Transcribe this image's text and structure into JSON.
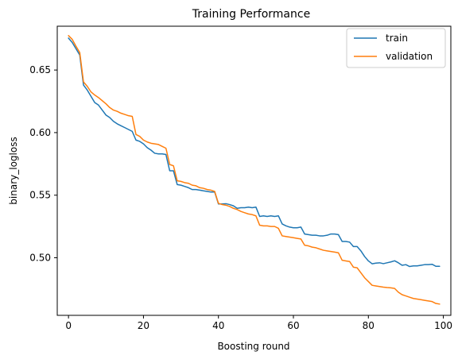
{
  "chart_data": {
    "type": "line",
    "title": "Training Performance",
    "xlabel": "Boosting round",
    "ylabel": "binary_logloss",
    "xlim": [
      -3,
      102
    ],
    "ylim": [
      0.454,
      0.685
    ],
    "xticks": [
      0,
      20,
      40,
      60,
      80,
      100
    ],
    "yticks": [
      0.5,
      0.55,
      0.6,
      0.65
    ],
    "ytick_labels": [
      "0.50",
      "0.55",
      "0.60",
      "0.65"
    ],
    "grid": false,
    "legend_position": "top-right",
    "series": [
      {
        "name": "train",
        "color": "#1f77b4",
        "points": [
          [
            0,
            0.6755
          ],
          [
            1,
            0.672
          ],
          [
            2,
            0.667
          ],
          [
            3,
            0.662
          ],
          [
            4,
            0.638
          ],
          [
            5,
            0.634
          ],
          [
            6,
            0.629
          ],
          [
            7,
            0.624
          ],
          [
            8,
            0.622
          ],
          [
            9,
            0.618
          ],
          [
            10,
            0.614
          ],
          [
            11,
            0.612
          ],
          [
            12,
            0.609
          ],
          [
            13,
            0.607
          ],
          [
            14,
            0.6055
          ],
          [
            15,
            0.604
          ],
          [
            16,
            0.6025
          ],
          [
            17,
            0.601
          ],
          [
            18,
            0.594
          ],
          [
            19,
            0.593
          ],
          [
            20,
            0.591
          ],
          [
            21,
            0.588
          ],
          [
            22,
            0.586
          ],
          [
            23,
            0.5835
          ],
          [
            24,
            0.583
          ],
          [
            25,
            0.583
          ],
          [
            26,
            0.5825
          ],
          [
            27,
            0.5695
          ],
          [
            28,
            0.5695
          ],
          [
            29,
            0.5585
          ],
          [
            30,
            0.558
          ],
          [
            31,
            0.557
          ],
          [
            32,
            0.556
          ],
          [
            33,
            0.5545
          ],
          [
            34,
            0.5545
          ],
          [
            35,
            0.554
          ],
          [
            36,
            0.5535
          ],
          [
            37,
            0.553
          ],
          [
            38,
            0.5525
          ],
          [
            39,
            0.5525
          ],
          [
            40,
            0.543
          ],
          [
            41,
            0.543
          ],
          [
            42,
            0.5432
          ],
          [
            43,
            0.5425
          ],
          [
            44,
            0.5415
          ],
          [
            45,
            0.5395
          ],
          [
            46,
            0.54
          ],
          [
            47,
            0.54
          ],
          [
            48,
            0.5405
          ],
          [
            49,
            0.54
          ],
          [
            50,
            0.5405
          ],
          [
            51,
            0.533
          ],
          [
            52,
            0.5335
          ],
          [
            53,
            0.533
          ],
          [
            54,
            0.5335
          ],
          [
            55,
            0.533
          ],
          [
            56,
            0.5335
          ],
          [
            57,
            0.527
          ],
          [
            58,
            0.5255
          ],
          [
            59,
            0.5245
          ],
          [
            60,
            0.524
          ],
          [
            61,
            0.524
          ],
          [
            62,
            0.5245
          ],
          [
            63,
            0.519
          ],
          [
            64,
            0.5185
          ],
          [
            65,
            0.518
          ],
          [
            66,
            0.518
          ],
          [
            67,
            0.5175
          ],
          [
            68,
            0.5175
          ],
          [
            69,
            0.518
          ],
          [
            70,
            0.519
          ],
          [
            71,
            0.519
          ],
          [
            72,
            0.5185
          ],
          [
            73,
            0.513
          ],
          [
            74,
            0.513
          ],
          [
            75,
            0.5125
          ],
          [
            76,
            0.509
          ],
          [
            77,
            0.509
          ],
          [
            78,
            0.5055
          ],
          [
            79,
            0.501
          ],
          [
            80,
            0.4975
          ],
          [
            81,
            0.4952
          ],
          [
            82,
            0.4957
          ],
          [
            83,
            0.496
          ],
          [
            84,
            0.4953
          ],
          [
            85,
            0.496
          ],
          [
            86,
            0.4967
          ],
          [
            87,
            0.4976
          ],
          [
            88,
            0.496
          ],
          [
            89,
            0.494
          ],
          [
            90,
            0.4945
          ],
          [
            91,
            0.493
          ],
          [
            92,
            0.4935
          ],
          [
            93,
            0.4935
          ],
          [
            94,
            0.494
          ],
          [
            95,
            0.4945
          ],
          [
            96,
            0.4945
          ],
          [
            97,
            0.4948
          ],
          [
            98,
            0.4932
          ],
          [
            99,
            0.4932
          ]
        ]
      },
      {
        "name": "validation",
        "color": "#ff7f0e",
        "points": [
          [
            0,
            0.6775
          ],
          [
            1,
            0.6745
          ],
          [
            2,
            0.669
          ],
          [
            3,
            0.664
          ],
          [
            4,
            0.6405
          ],
          [
            5,
            0.637
          ],
          [
            6,
            0.6325
          ],
          [
            7,
            0.63
          ],
          [
            8,
            0.628
          ],
          [
            9,
            0.6255
          ],
          [
            10,
            0.623
          ],
          [
            11,
            0.62
          ],
          [
            12,
            0.618
          ],
          [
            13,
            0.617
          ],
          [
            14,
            0.6155
          ],
          [
            15,
            0.6145
          ],
          [
            16,
            0.6135
          ],
          [
            17,
            0.613
          ],
          [
            18,
            0.5985
          ],
          [
            19,
            0.597
          ],
          [
            20,
            0.594
          ],
          [
            21,
            0.5925
          ],
          [
            22,
            0.5915
          ],
          [
            23,
            0.591
          ],
          [
            24,
            0.5905
          ],
          [
            25,
            0.589
          ],
          [
            26,
            0.5875
          ],
          [
            27,
            0.5745
          ],
          [
            28,
            0.5735
          ],
          [
            29,
            0.5615
          ],
          [
            30,
            0.561
          ],
          [
            31,
            0.56
          ],
          [
            32,
            0.5595
          ],
          [
            33,
            0.558
          ],
          [
            34,
            0.5575
          ],
          [
            35,
            0.556
          ],
          [
            36,
            0.5555
          ],
          [
            37,
            0.5545
          ],
          [
            38,
            0.554
          ],
          [
            39,
            0.553
          ],
          [
            40,
            0.5435
          ],
          [
            41,
            0.5425
          ],
          [
            42,
            0.542
          ],
          [
            43,
            0.541
          ],
          [
            44,
            0.5395
          ],
          [
            45,
            0.5385
          ],
          [
            46,
            0.537
          ],
          [
            47,
            0.536
          ],
          [
            48,
            0.535
          ],
          [
            49,
            0.5345
          ],
          [
            50,
            0.5335
          ],
          [
            51,
            0.526
          ],
          [
            52,
            0.5255
          ],
          [
            53,
            0.5255
          ],
          [
            54,
            0.525
          ],
          [
            55,
            0.525
          ],
          [
            56,
            0.5235
          ],
          [
            57,
            0.5175
          ],
          [
            58,
            0.517
          ],
          [
            59,
            0.5165
          ],
          [
            60,
            0.516
          ],
          [
            61,
            0.5155
          ],
          [
            62,
            0.515
          ],
          [
            63,
            0.51
          ],
          [
            64,
            0.5095
          ],
          [
            65,
            0.5085
          ],
          [
            66,
            0.508
          ],
          [
            67,
            0.507
          ],
          [
            68,
            0.506
          ],
          [
            69,
            0.5055
          ],
          [
            70,
            0.505
          ],
          [
            71,
            0.5045
          ],
          [
            72,
            0.504
          ],
          [
            73,
            0.498
          ],
          [
            74,
            0.4975
          ],
          [
            75,
            0.497
          ],
          [
            76,
            0.4925
          ],
          [
            77,
            0.492
          ],
          [
            78,
            0.488
          ],
          [
            79,
            0.484
          ],
          [
            80,
            0.481
          ],
          [
            81,
            0.478
          ],
          [
            82,
            0.4775
          ],
          [
            83,
            0.477
          ],
          [
            84,
            0.4765
          ],
          [
            85,
            0.4762
          ],
          [
            86,
            0.476
          ],
          [
            87,
            0.4755
          ],
          [
            88,
            0.4725
          ],
          [
            89,
            0.4705
          ],
          [
            90,
            0.4695
          ],
          [
            91,
            0.4685
          ],
          [
            92,
            0.4675
          ],
          [
            93,
            0.467
          ],
          [
            94,
            0.4665
          ],
          [
            95,
            0.466
          ],
          [
            96,
            0.4655
          ],
          [
            97,
            0.465
          ],
          [
            98,
            0.4635
          ],
          [
            99,
            0.463
          ]
        ]
      }
    ]
  }
}
